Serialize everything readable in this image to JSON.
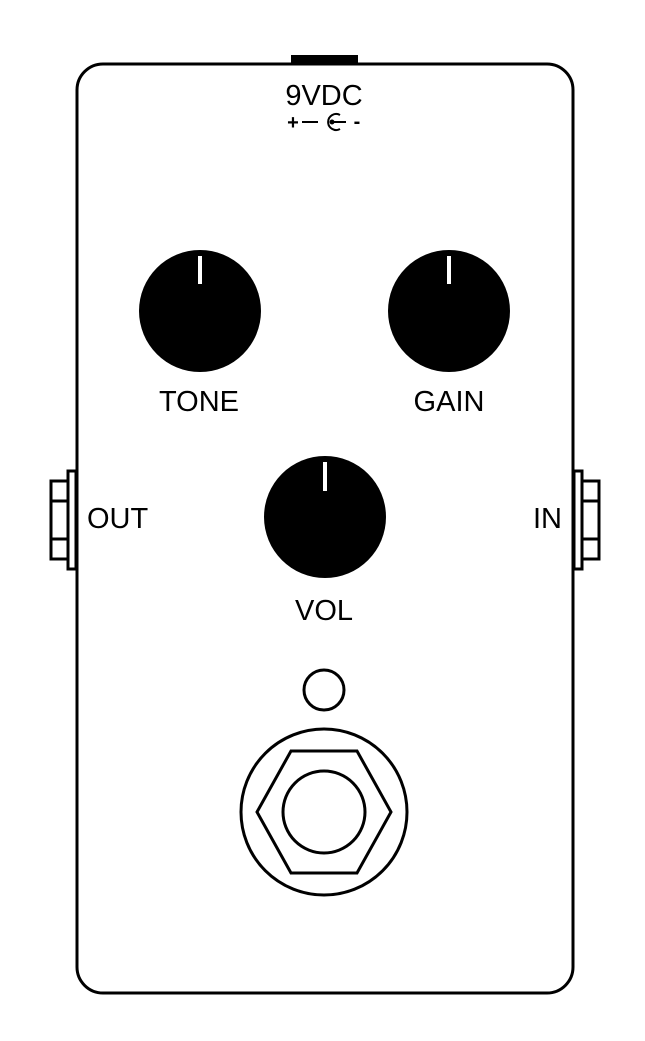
{
  "power": {
    "label": "9VDC",
    "polarity_positive": "+",
    "polarity_negative": "-"
  },
  "knobs": {
    "tone": {
      "label": "TONE"
    },
    "gain": {
      "label": "GAIN"
    },
    "vol": {
      "label": "VOL"
    }
  },
  "jacks": {
    "out": {
      "label": "OUT"
    },
    "in": {
      "label": "IN"
    }
  },
  "colors": {
    "outline": "#000000",
    "knob": "#000000",
    "indicator": "#ffffff",
    "background": "#ffffff"
  },
  "icons": {
    "power": "dc-power-polarity-icon",
    "led": "led-indicator-icon",
    "footswitch": "footswitch-icon"
  }
}
